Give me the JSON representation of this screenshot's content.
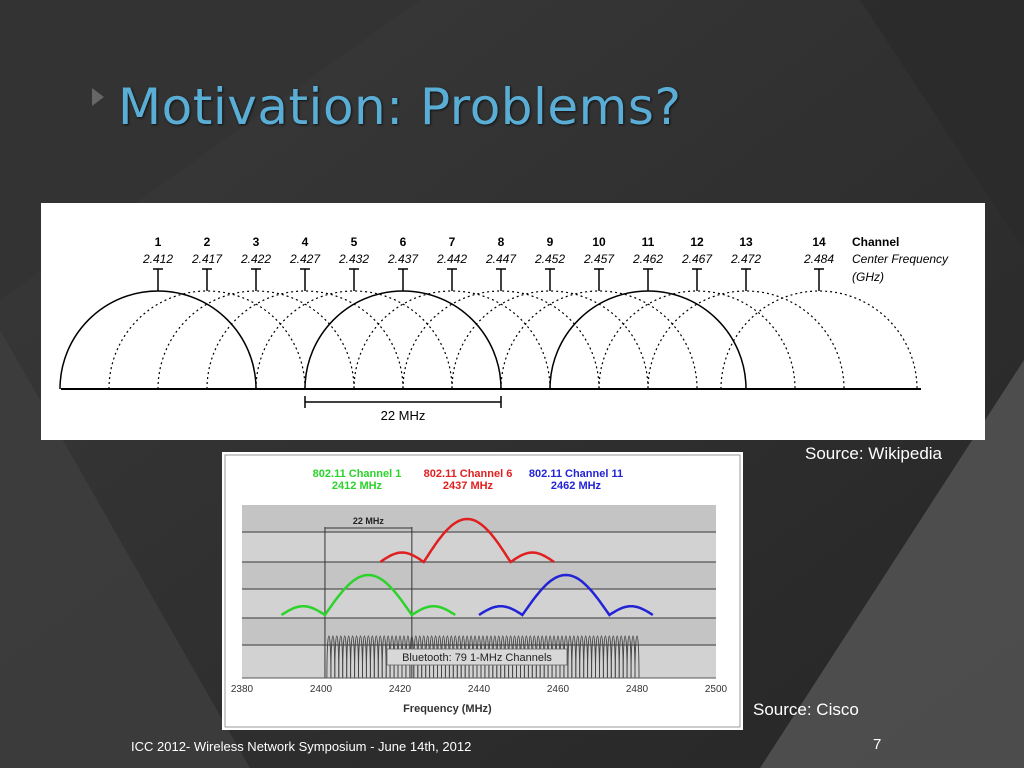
{
  "slide": {
    "title": "Motivation: Problems?",
    "caption_wikipedia": "Source: Wikipedia",
    "caption_cisco": "Source: Cisco",
    "footer": "ICC 2012-  Wireless Network Symposium - June 14th, 2012",
    "page_number": "7"
  },
  "fig1": {
    "channels": [
      "1",
      "2",
      "3",
      "4",
      "5",
      "6",
      "7",
      "8",
      "9",
      "10",
      "11",
      "12",
      "13",
      "14"
    ],
    "frequencies": [
      "2.412",
      "2.417",
      "2.422",
      "2.427",
      "2.432",
      "2.437",
      "2.442",
      "2.447",
      "2.452",
      "2.457",
      "2.462",
      "2.467",
      "2.472",
      "2.484"
    ],
    "solid_channels": [
      "1",
      "6",
      "11"
    ],
    "header_channel": "Channel",
    "header_freq_line1": "Center Frequency",
    "header_freq_line2": "(GHz)",
    "width_label": "22 MHz"
  },
  "fig2": {
    "legend": [
      {
        "line1": "802.11 Channel 1",
        "line2": "2412 MHz",
        "color": "#2bd32b"
      },
      {
        "line1": "802.11 Channel 6",
        "line2": "2437 MHz",
        "color": "#e02020"
      },
      {
        "line1": "802.11 Channel 11",
        "line2": "2462 MHz",
        "color": "#2323d6"
      }
    ],
    "width_label": "22 MHz",
    "bluetooth_label": "Bluetooth: 79 1-MHz Channels",
    "xlabel": "Frequency (MHz)",
    "xticks": [
      "2380",
      "2400",
      "2420",
      "2440",
      "2460",
      "2480",
      "2500"
    ]
  }
}
